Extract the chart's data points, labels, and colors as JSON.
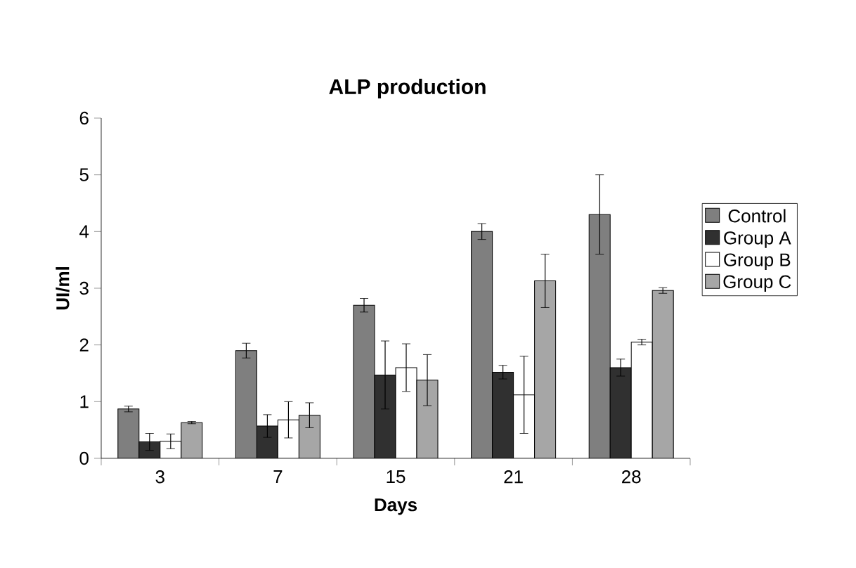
{
  "chart_data": {
    "type": "bar",
    "title": "ALP production",
    "xlabel": "Days",
    "ylabel": "UI/ml",
    "categories": [
      "3",
      "7",
      "15",
      "21",
      "28"
    ],
    "series": [
      {
        "name": "Control",
        "color": "#7f7f7f",
        "values": [
          0.87,
          1.9,
          2.7,
          4.0,
          4.3
        ],
        "errors": [
          0.05,
          0.13,
          0.12,
          0.14,
          0.7
        ]
      },
      {
        "name": "Group A",
        "color": "#303030",
        "values": [
          0.29,
          0.57,
          1.47,
          1.52,
          1.6
        ],
        "errors": [
          0.15,
          0.2,
          0.6,
          0.12,
          0.15
        ]
      },
      {
        "name": "Group B",
        "color": "#ffffff",
        "values": [
          0.3,
          0.68,
          1.6,
          1.12,
          2.05
        ],
        "errors": [
          0.13,
          0.32,
          0.42,
          0.68,
          0.05
        ]
      },
      {
        "name": "Group C",
        "color": "#a6a6a6",
        "values": [
          0.63,
          0.76,
          1.38,
          3.13,
          2.96
        ],
        "errors": [
          0.02,
          0.22,
          0.45,
          0.47,
          0.05
        ]
      }
    ],
    "ylim": [
      0,
      6
    ],
    "yticks": [
      0,
      1,
      2,
      3,
      4,
      5,
      6
    ],
    "grid": false,
    "legend": "right"
  }
}
